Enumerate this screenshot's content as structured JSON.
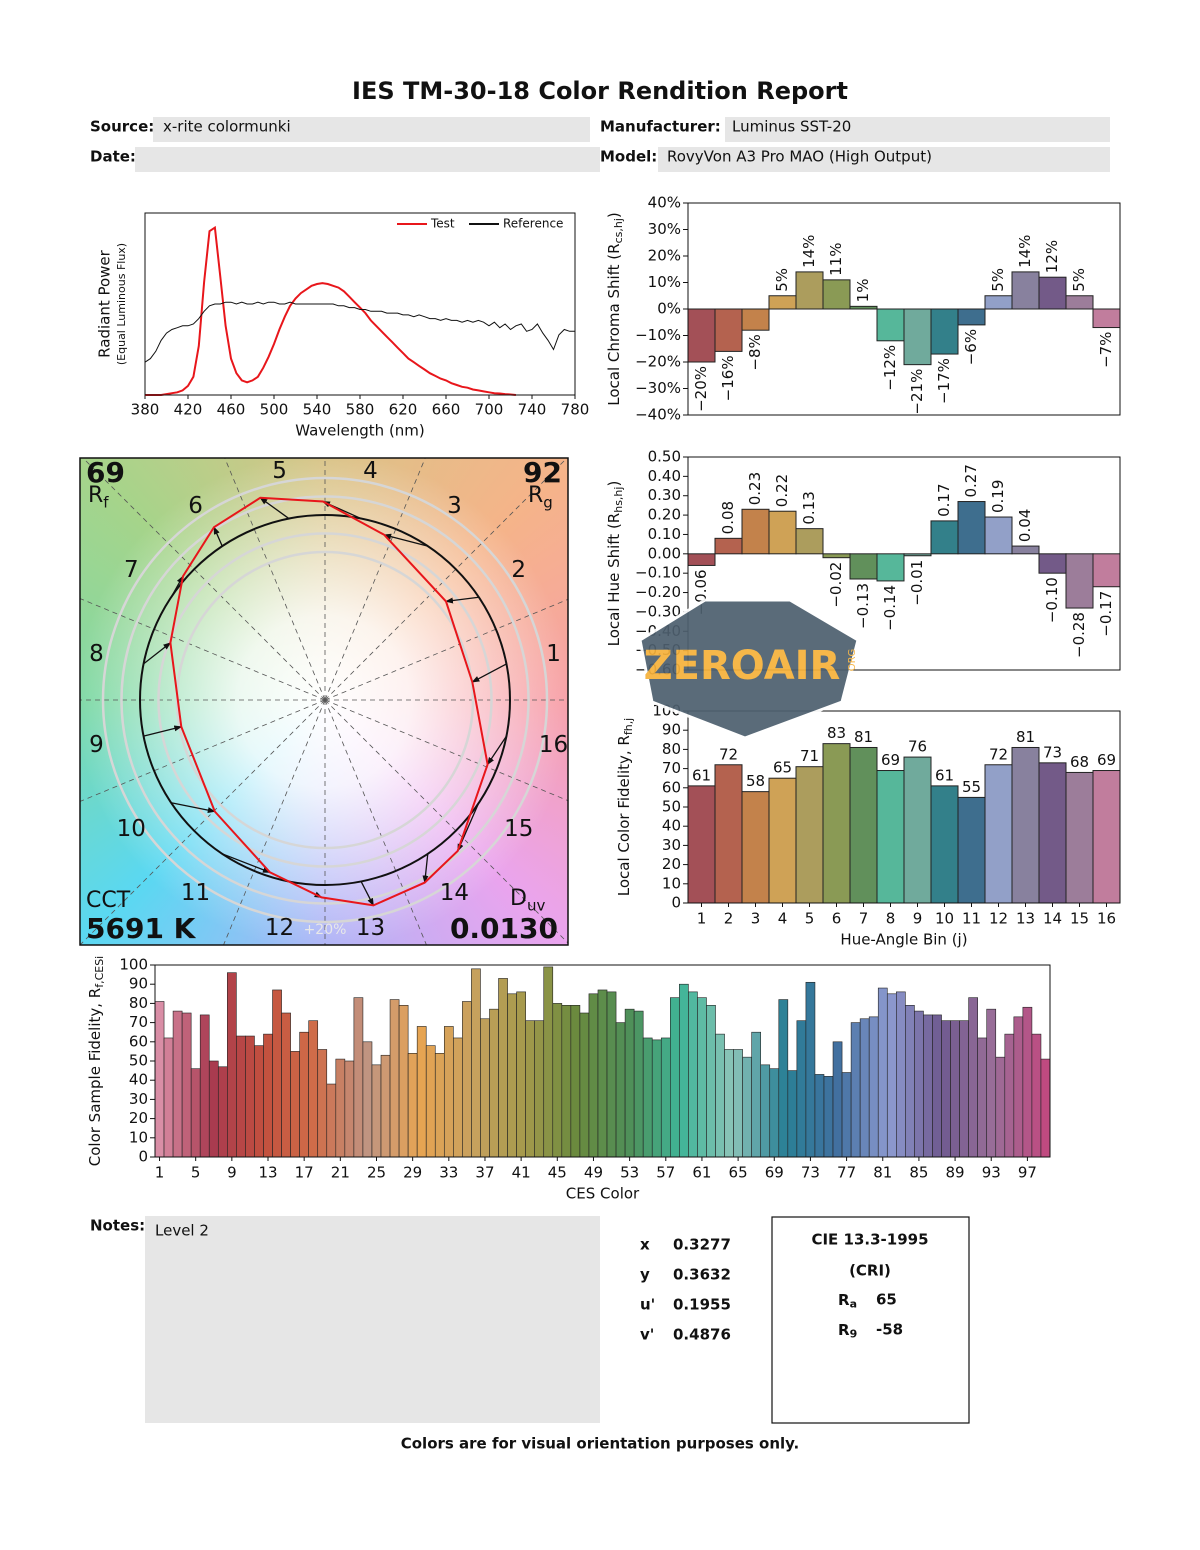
{
  "header": {
    "title": "IES TM-30-18 Color Rendition Report",
    "fields": [
      {
        "label": "Source:",
        "value": "x-rite colormunki"
      },
      {
        "label": "Manufacturer:",
        "value": "Luminus SST-20"
      },
      {
        "label": "Date:"
      },
      {
        "label": "Model:",
        "value": "RovyVon A3 Pro MAO (High Output)"
      }
    ]
  },
  "chart_data": [
    {
      "type": "line",
      "xlabel": "Wavelength (nm)",
      "ylabel": "Radiant Power",
      "ylabel_note": "(Equal Luminous Flux)",
      "xlim": [
        380,
        780
      ],
      "xticks": [
        380,
        420,
        460,
        500,
        540,
        580,
        620,
        660,
        700,
        740,
        780
      ],
      "ylim": [
        0,
        1
      ],
      "legend": "upper right",
      "x": [
        380,
        385,
        390,
        395,
        400,
        405,
        410,
        415,
        420,
        425,
        430,
        435,
        440,
        445,
        450,
        455,
        460,
        465,
        470,
        475,
        480,
        485,
        490,
        495,
        500,
        505,
        510,
        515,
        520,
        525,
        530,
        535,
        540,
        545,
        550,
        555,
        560,
        565,
        570,
        575,
        580,
        585,
        590,
        595,
        600,
        605,
        610,
        615,
        620,
        625,
        630,
        635,
        640,
        645,
        650,
        655,
        660,
        665,
        670,
        675,
        680,
        685,
        690,
        695,
        700,
        705,
        710,
        715,
        720,
        725,
        730,
        735,
        740,
        745,
        750,
        755,
        760,
        765,
        770,
        775,
        780
      ],
      "series": [
        {
          "name": "Test",
          "color": "#e8161b",
          "values": [
            0,
            0,
            0,
            0,
            0.005,
            0.01,
            0.015,
            0.025,
            0.05,
            0.1,
            0.27,
            0.62,
            0.9,
            0.92,
            0.65,
            0.38,
            0.2,
            0.12,
            0.08,
            0.07,
            0.08,
            0.1,
            0.15,
            0.21,
            0.28,
            0.36,
            0.43,
            0.49,
            0.53,
            0.56,
            0.58,
            0.6,
            0.61,
            0.615,
            0.61,
            0.6,
            0.59,
            0.57,
            0.54,
            0.51,
            0.48,
            0.45,
            0.41,
            0.38,
            0.35,
            0.32,
            0.29,
            0.26,
            0.23,
            0.2,
            0.18,
            0.16,
            0.14,
            0.12,
            0.105,
            0.09,
            0.08,
            0.065,
            0.055,
            0.045,
            0.04,
            0.03,
            0.025,
            0.02,
            0.015,
            0.01,
            0.008,
            0.005,
            0.003,
            0,
            null,
            null,
            null,
            null,
            null,
            null,
            null,
            null,
            null,
            null,
            null
          ]
        },
        {
          "name": "Reference",
          "color": "#111111",
          "values": [
            0.18,
            0.2,
            0.24,
            0.3,
            0.34,
            0.36,
            0.37,
            0.38,
            0.38,
            0.39,
            0.42,
            0.46,
            0.49,
            0.5,
            0.5,
            0.51,
            0.51,
            0.5,
            0.51,
            0.5,
            0.5,
            0.51,
            0.5,
            0.51,
            0.51,
            0.5,
            0.5,
            0.51,
            0.5,
            0.5,
            0.5,
            0.5,
            0.5,
            0.5,
            0.5,
            0.5,
            0.49,
            0.49,
            0.48,
            0.48,
            0.47,
            0.47,
            0.46,
            0.46,
            0.46,
            0.45,
            0.45,
            0.45,
            0.44,
            0.44,
            0.43,
            0.44,
            0.43,
            0.42,
            0.42,
            0.41,
            0.42,
            0.41,
            0.41,
            0.4,
            0.41,
            0.4,
            0.41,
            0.4,
            0.38,
            0.4,
            0.37,
            0.39,
            0.36,
            0.38,
            0.39,
            0.35,
            0.36,
            0.39,
            0.34,
            0.3,
            0.25,
            0.33,
            0.36,
            0.35,
            0.35
          ]
        }
      ]
    },
    {
      "type": "bar",
      "ylabel": {
        "text": "Local Chroma Shift (R",
        "subscript": "cs,hj",
        "suffix": ")"
      },
      "ylim": [
        -40,
        40
      ],
      "yticks": [
        {
          "value": 40,
          "label": "40%"
        },
        {
          "value": 30,
          "label": "30%"
        },
        {
          "value": 20,
          "label": "20%"
        },
        {
          "value": 10,
          "label": "10%"
        },
        {
          "value": 0,
          "label": "0%"
        },
        {
          "value": -10,
          "label": "−10%"
        },
        {
          "value": -20,
          "label": "−20%"
        },
        {
          "value": -30,
          "label": "−30%"
        },
        {
          "value": -40,
          "label": "−40%"
        }
      ],
      "values": [
        -20,
        -16,
        -8,
        5,
        14,
        11,
        1,
        -12,
        -21,
        -17,
        -6,
        5,
        14,
        12,
        5,
        -7
      ],
      "value_labels": [
        "−20%",
        "−16%",
        "−8%",
        "5%",
        "14%",
        "11%",
        "1%",
        "−12%",
        "−21%",
        "−17%",
        "−6%",
        "5%",
        "14%",
        "12%",
        "5%",
        "−7%"
      ],
      "colors": [
        "#a35057",
        "#b4624f",
        "#c3824b",
        "#cfa256",
        "#ac9d5d",
        "#8a9a55",
        "#61905b",
        "#56b79a",
        "#70aa9c",
        "#33808a",
        "#3e6e8e",
        "#92a0c8",
        "#88819e",
        "#735a88",
        "#9c7d9a",
        "#c17d9d"
      ]
    },
    {
      "type": "bar",
      "ylabel": {
        "text": "Local Hue Shift (R",
        "subscript": "hs,hj",
        "suffix": ")"
      },
      "ylim": [
        -0.6,
        0.5
      ],
      "yticks": [
        {
          "value": 0.5,
          "label": "0.50"
        },
        {
          "value": 0.4,
          "label": "0.40"
        },
        {
          "value": 0.3,
          "label": "0.30"
        },
        {
          "value": 0.2,
          "label": "0.20"
        },
        {
          "value": 0.1,
          "label": "0.10"
        },
        {
          "value": 0,
          "label": "0.00"
        },
        {
          "value": -0.1,
          "label": "−0.10"
        },
        {
          "value": -0.2,
          "label": "−0.20"
        },
        {
          "value": -0.3,
          "label": "−0.30"
        },
        {
          "value": -0.4,
          "label": "−0.40"
        },
        {
          "value": -0.5,
          "label": "−0.50"
        },
        {
          "value": -0.6,
          "label": "−0.60"
        }
      ],
      "values": [
        -0.06,
        0.08,
        0.23,
        0.22,
        0.13,
        -0.02,
        -0.13,
        -0.14,
        -0.01,
        0.17,
        0.27,
        0.19,
        0.04,
        -0.1,
        -0.28,
        -0.17
      ],
      "value_labels": [
        "−0.06",
        "0.08",
        "0.23",
        "0.22",
        "0.13",
        "−0.02",
        "−0.13",
        "−0.14",
        "−0.01",
        "0.17",
        "0.27",
        "0.19",
        "0.04",
        "−0.10",
        "−0.28",
        "−0.17"
      ],
      "colors": [
        "#a35057",
        "#b4624f",
        "#c3824b",
        "#cfa256",
        "#ac9d5d",
        "#8a9a55",
        "#61905b",
        "#56b79a",
        "#70aa9c",
        "#33808a",
        "#3e6e8e",
        "#92a0c8",
        "#88819e",
        "#735a88",
        "#9c7d9a",
        "#c17d9d"
      ]
    },
    {
      "type": "bar",
      "xlabel": "Hue-Angle Bin (j)",
      "ylabel": {
        "text": "Local Color Fidelity, R",
        "subscript": "fh,j"
      },
      "categories": [
        "1",
        "2",
        "3",
        "4",
        "5",
        "6",
        "7",
        "8",
        "9",
        "10",
        "11",
        "12",
        "13",
        "14",
        "15",
        "16"
      ],
      "ylim": [
        0,
        100
      ],
      "yticks": [
        0,
        10,
        20,
        30,
        40,
        50,
        60,
        70,
        80,
        90,
        100
      ],
      "values": [
        61,
        72,
        58,
        65,
        71,
        83,
        81,
        69,
        76,
        61,
        55,
        72,
        81,
        73,
        68,
        69
      ],
      "data_labels": true,
      "colors": [
        "#a35057",
        "#b4624f",
        "#c3824b",
        "#cfa256",
        "#ac9d5d",
        "#8a9a55",
        "#61905b",
        "#56b79a",
        "#70aa9c",
        "#33808a",
        "#3e6e8e",
        "#92a0c8",
        "#88819e",
        "#735a88",
        "#9c7d9a",
        "#c17d9d"
      ]
    },
    {
      "type": "bar",
      "xlabel": "CES Color",
      "ylabel": {
        "text": "Color Sample Fidelity, R",
        "subscript": "f,CESi"
      },
      "categories": [
        "1",
        null,
        null,
        null,
        "5",
        null,
        null,
        null,
        "9",
        null,
        null,
        null,
        "13",
        null,
        null,
        null,
        "17",
        null,
        null,
        null,
        "21",
        null,
        null,
        null,
        "25",
        null,
        null,
        null,
        "29",
        null,
        null,
        null,
        "33",
        null,
        null,
        null,
        "37",
        null,
        null,
        null,
        "41",
        null,
        null,
        null,
        "45",
        null,
        null,
        null,
        "49",
        null,
        null,
        null,
        "53",
        null,
        null,
        null,
        "57",
        null,
        null,
        null,
        "61",
        null,
        null,
        null,
        "65",
        null,
        null,
        null,
        "69",
        null,
        null,
        null,
        "73",
        null,
        null,
        null,
        "77",
        null,
        null,
        null,
        "81",
        null,
        null,
        null,
        "85",
        null,
        null,
        null,
        "89",
        null,
        null,
        null,
        "93",
        null,
        null,
        null,
        "97",
        null,
        null
      ],
      "ylim": [
        0,
        100
      ],
      "yticks": [
        0,
        10,
        20,
        30,
        40,
        50,
        60,
        70,
        80,
        90,
        100
      ],
      "values": [
        81,
        62,
        76,
        75,
        46,
        74,
        50,
        47,
        96,
        63,
        63,
        58,
        64,
        87,
        75,
        55,
        65,
        71,
        56,
        38,
        51,
        50,
        83,
        60,
        48,
        53,
        82,
        79,
        54,
        68,
        58,
        54,
        68,
        62,
        81,
        98,
        72,
        77,
        93,
        85,
        86,
        71,
        71,
        99,
        80,
        79,
        79,
        75,
        85,
        87,
        86,
        70,
        77,
        76,
        62,
        61,
        62,
        83,
        90,
        86,
        83,
        79,
        64,
        56,
        56,
        52,
        65,
        48,
        46,
        82,
        45,
        71,
        91,
        43,
        42,
        60,
        44,
        70,
        72,
        73,
        88,
        85,
        86,
        79,
        76,
        74,
        74,
        71,
        71,
        71,
        83,
        62,
        77,
        52,
        64,
        73,
        78,
        64,
        51
      ],
      "colors": [
        "#d98ea6",
        "#a83a50",
        "#c2503e",
        "#d06e4a",
        "#c09482",
        "#e7a452",
        "#c8a15e",
        "#a59a4c",
        "#6a8a3e",
        "#4f8f58",
        "#3fb497",
        "#8cc4b8",
        "#2a8096",
        "#4170a0",
        "#8d9ad0",
        "#6f5a90",
        "#9a6e98",
        "#c04a80"
      ]
    },
    {
      "type": "vector_graphic",
      "categories": [
        "1",
        "2",
        "3",
        "4",
        "5",
        "6",
        "7",
        "8",
        "9",
        "10",
        "11",
        "12",
        "13",
        "14",
        "15",
        "16"
      ],
      "rf": {
        "value": 69,
        "symbol": "R",
        "subscript": "f"
      },
      "rg": {
        "value": 92,
        "symbol": "R",
        "subscript": "g"
      },
      "cct": {
        "label": "CCT",
        "value": "5691 K"
      },
      "duv": {
        "symbol": "D",
        "subscript": "uv",
        "value": "0.0130"
      },
      "scale_label": "+20%"
    }
  ],
  "watermark": {
    "text": "ZEROAIR",
    "suffix": "ORG"
  },
  "notes": {
    "label": "Notes:",
    "text": "Level 2"
  },
  "chromaticity": [
    {
      "label": "x",
      "value": 0.3277
    },
    {
      "label": "y",
      "value": 0.3632
    },
    {
      "label": "u'",
      "value": 0.1955
    },
    {
      "label": "v'",
      "value": 0.4876
    }
  ],
  "cri": {
    "title": "CIE 13.3-1995",
    "subtitle": "(CRI)",
    "items": [
      {
        "symbol": "R",
        "subscript": "a",
        "value": 65
      },
      {
        "symbol": "R",
        "subscript": "9",
        "value": -58
      }
    ]
  },
  "footer": "Colors are for visual orientation purposes only."
}
